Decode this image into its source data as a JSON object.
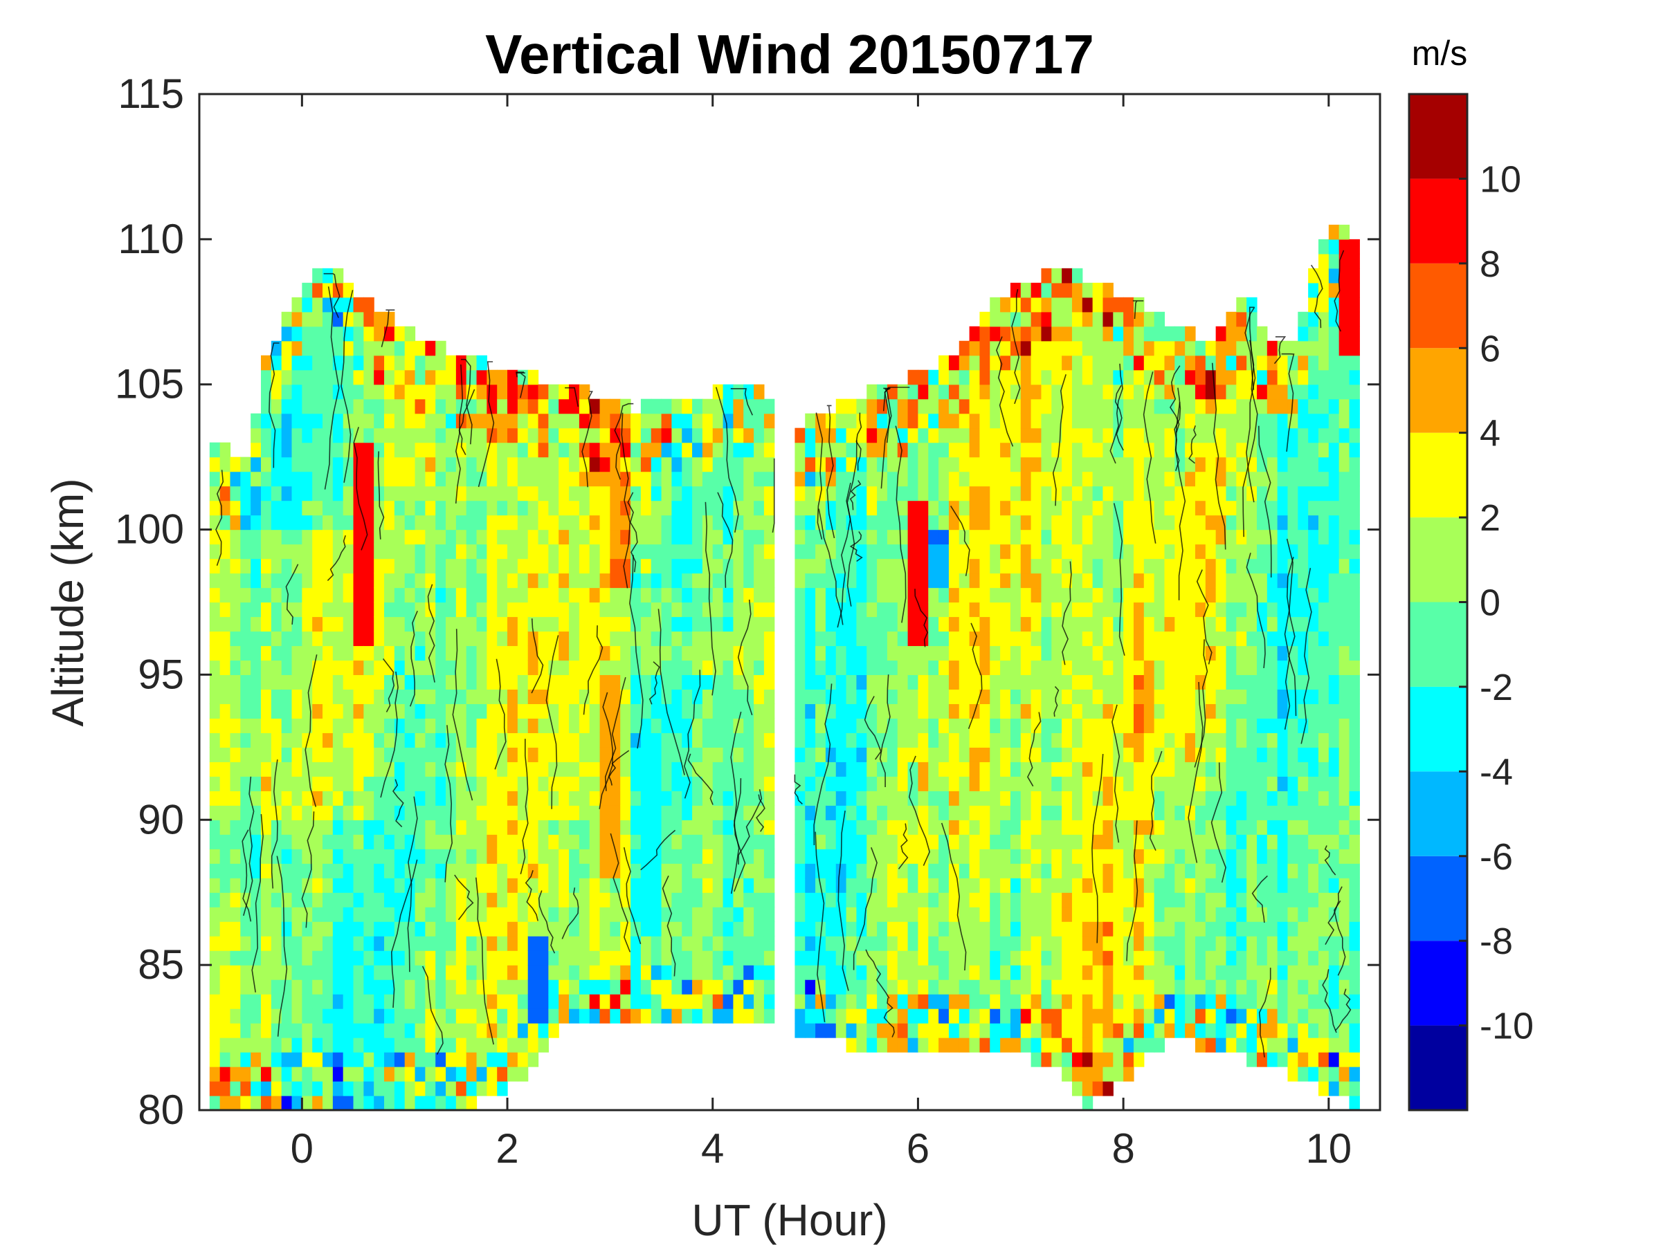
{
  "chart_data": {
    "type": "heatmap",
    "subtype": "filled-contour",
    "title": "Vertical Wind 20150717",
    "xlabel": "UT (Hour)",
    "ylabel": "Altitude (km)",
    "xlim": [
      -1,
      10.5
    ],
    "ylim": [
      80,
      115
    ],
    "xticks": [
      0,
      2,
      4,
      6,
      8,
      10
    ],
    "xtick_labels": [
      "0",
      "2",
      "4",
      "6",
      "8",
      "10"
    ],
    "yticks": [
      80,
      85,
      90,
      95,
      100,
      105,
      110,
      115
    ],
    "ytick_labels": [
      "80",
      "85",
      "90",
      "95",
      "100",
      "105",
      "110",
      "115"
    ],
    "data_gap_hours": [
      4.6,
      4.8
    ],
    "segments": [
      {
        "x_start": -0.9,
        "x_end": 4.6
      },
      {
        "x_start": 4.8,
        "x_end": 10.3
      }
    ],
    "top_boundary": {
      "x": [
        -0.9,
        -0.5,
        -0.4,
        0.0,
        0.3,
        0.6,
        1.0,
        1.5,
        2.0,
        2.6,
        3.2,
        3.8,
        4.3,
        4.6,
        4.8,
        5.3,
        5.8,
        6.3,
        6.8,
        7.3,
        7.8,
        8.3,
        8.8,
        9.2,
        9.6,
        10.0,
        10.3
      ],
      "y": [
        103.0,
        102.5,
        105.5,
        108.5,
        109.0,
        108.0,
        107.0,
        106.0,
        105.5,
        105.0,
        104.2,
        104.5,
        105.0,
        104.5,
        103.5,
        104.5,
        105.0,
        106.0,
        108.0,
        109.0,
        108.5,
        107.5,
        106.5,
        108.0,
        106.0,
        110.5,
        110.0
      ]
    },
    "bottom_boundary": {
      "x": [
        -0.9,
        1.0,
        1.8,
        2.1,
        2.5,
        4.6,
        4.8,
        5.5,
        6.5,
        7.4,
        7.6,
        8.5,
        9.5,
        10.3
      ],
      "y": [
        80.0,
        80.0,
        80.3,
        81.0,
        82.8,
        83.2,
        82.8,
        82.0,
        82.2,
        81.5,
        80.0,
        82.5,
        81.5,
        80.0
      ]
    },
    "vertical_features": [
      {
        "x": 0.6,
        "y_range": [
          96,
          103
        ],
        "value": 9
      },
      {
        "x": 3.0,
        "y_range": [
          88,
          95
        ],
        "value": 5
      },
      {
        "x": 3.1,
        "y_range": [
          98,
          102
        ],
        "value": 6
      },
      {
        "x": 6.0,
        "y_range": [
          96,
          101
        ],
        "value": 9
      },
      {
        "x": 6.2,
        "y_range": [
          98,
          100
        ],
        "value": -6
      },
      {
        "x": 3.4,
        "y_range": [
          86,
          93
        ],
        "value": -3
      },
      {
        "x": 8.6,
        "y_range": [
          93,
          101
        ],
        "value": 3
      },
      {
        "x": 1.0,
        "y_range": [
          85,
          93
        ],
        "value": -2
      },
      {
        "x": 2.3,
        "y_range": [
          83,
          86
        ],
        "value": -7
      },
      {
        "x": 10.2,
        "y_range": [
          106,
          110
        ],
        "value": 9
      }
    ],
    "colorbar": {
      "label": "m/s",
      "levels": [
        -12,
        -10,
        -8,
        -6,
        -4,
        -2,
        0,
        2,
        4,
        6,
        8,
        10,
        12
      ],
      "tick_values": [
        10,
        8,
        6,
        4,
        2,
        0,
        -2,
        -4,
        -6,
        -8,
        -10
      ],
      "tick_labels": [
        "10",
        "8",
        "6",
        "4",
        "2",
        "0",
        "-2",
        "-4",
        "-6",
        "-8",
        "-10"
      ],
      "colors": [
        "#00009f",
        "#0000ff",
        "#0063ff",
        "#00b8ff",
        "#00ffff",
        "#58ffa8",
        "#a8ff58",
        "#ffff00",
        "#ffa500",
        "#ff5a00",
        "#ff0000",
        "#a50000"
      ]
    }
  }
}
